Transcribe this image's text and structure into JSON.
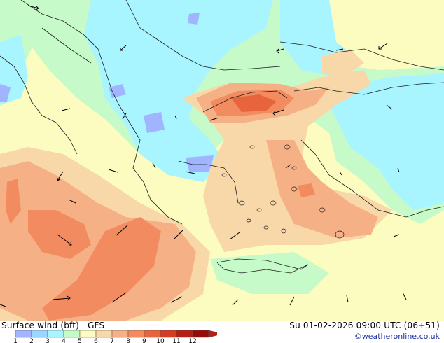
{
  "title": "Surface wind (bft)",
  "model": "GFS",
  "valid_time": "Su 01-02-2026 09:00 UTC (06+51)",
  "copyright": "©weatheronline.co.uk",
  "legend": {
    "ticks": [
      "1",
      "2",
      "3",
      "4",
      "5",
      "6",
      "7",
      "8",
      "9",
      "10",
      "11",
      "12"
    ],
    "colors": [
      "#a0b4ff",
      "#9ad6ff",
      "#a8f4ff",
      "#c6fac8",
      "#fcfcc0",
      "#f8d8a8",
      "#f6b086",
      "#f28c60",
      "#e8643c",
      "#d43c24",
      "#b41c14",
      "#960a0a"
    ],
    "arrow_color": "#b41c14"
  }
}
